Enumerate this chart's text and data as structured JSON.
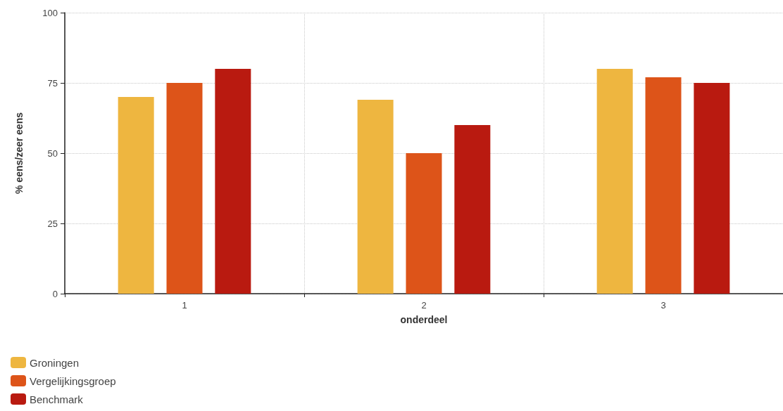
{
  "chart_data": {
    "type": "bar",
    "categories": [
      "1",
      "2",
      "3"
    ],
    "series": [
      {
        "name": "Groningen",
        "color": "#eeb640",
        "values": [
          70,
          69,
          80
        ]
      },
      {
        "name": "Vergelijkingsgroep",
        "color": "#dd5419",
        "values": [
          75,
          50,
          77
        ]
      },
      {
        "name": "Benchmark",
        "color": "#b91a10",
        "values": [
          80,
          60,
          75
        ]
      }
    ],
    "xlabel": "onderdeel",
    "ylabel": "% eens/zeer eens",
    "ylim": [
      0,
      100
    ],
    "yticks": [
      0,
      25,
      50,
      75,
      100
    ],
    "grid": true,
    "legend": "bottom left"
  }
}
